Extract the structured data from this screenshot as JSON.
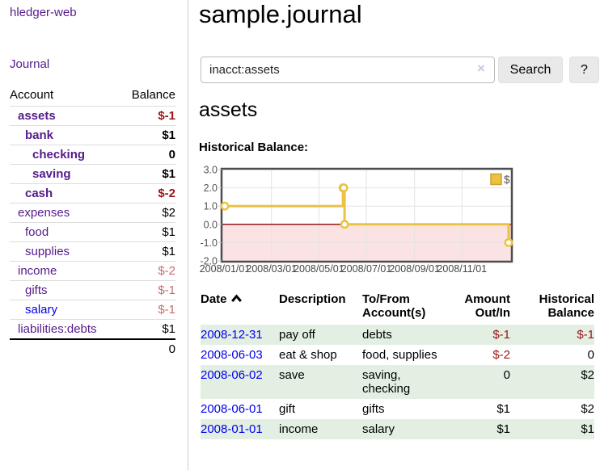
{
  "app": {
    "brand": "hledger-web",
    "nav_journal": "Journal"
  },
  "sidebar": {
    "headers": {
      "account": "Account",
      "balance": "Balance"
    },
    "accounts": [
      {
        "name": "assets",
        "balance": "$-1"
      },
      {
        "name": "bank",
        "balance": "$1"
      },
      {
        "name": "checking",
        "balance": "0"
      },
      {
        "name": "saving",
        "balance": "$1"
      },
      {
        "name": "cash",
        "balance": "$-2"
      },
      {
        "name": "expenses",
        "balance": "$2"
      },
      {
        "name": "food",
        "balance": "$1"
      },
      {
        "name": "supplies",
        "balance": "$1"
      },
      {
        "name": "income",
        "balance": "$-2"
      },
      {
        "name": "gifts",
        "balance": "$-1"
      },
      {
        "name": "salary",
        "balance": "$-1"
      },
      {
        "name": "liabilities:debts",
        "balance": "$1"
      }
    ],
    "total": "0"
  },
  "main": {
    "title": "sample.journal",
    "search": {
      "value": "inacct:assets",
      "clear_icon": "×",
      "button": "Search",
      "help_button": "?"
    },
    "account_heading": "assets",
    "chart_title": "Historical Balance:"
  },
  "chart_data": {
    "type": "line",
    "title": "Historical Balance",
    "step": true,
    "series": [
      {
        "name": "$",
        "color": "#EDC240",
        "points": [
          [
            "2008-01-01",
            1
          ],
          [
            "2008-06-01",
            2
          ],
          [
            "2008-06-02",
            2
          ],
          [
            "2008-06-03",
            0
          ],
          [
            "2008-12-31",
            -1
          ]
        ]
      }
    ],
    "xlim": [
      "2008-01-01",
      "2008-12-31"
    ],
    "ylim": [
      -2,
      3
    ],
    "y_ticks": [
      3.0,
      2.0,
      1.0,
      0.0,
      -1.0,
      -2.0
    ],
    "x_ticks": [
      {
        "date": "2008-01-01",
        "label": "2008/01/01"
      },
      {
        "date": "2008-03-01",
        "label": "2008/03/01"
      },
      {
        "date": "2008-05-01",
        "label": "2008/05/01"
      },
      {
        "date": "2008-07-01",
        "label": "2008/07/01"
      },
      {
        "date": "2008-09-01",
        "label": "2008/09/01"
      },
      {
        "date": "2008-11-01",
        "label": "2008/11/01"
      }
    ],
    "legend_position": "top-right",
    "legend_label": "$",
    "grid": true,
    "negative_region_color": "#fbe3e3",
    "zero_line_color": "#8b0000",
    "border_color": "#4d4d4d",
    "gridline_color": "#e3e3e3",
    "tick_label_color": "#545454"
  },
  "register": {
    "headers": {
      "date": "Date",
      "description": "Description",
      "accounts": "To/From Account(s)",
      "amount": "Amount Out/In",
      "balance": "Historical Balance"
    },
    "rows": [
      {
        "date": "2008-12-31",
        "description": "pay off",
        "accounts": "debts",
        "amount": "$-1",
        "balance": "$-1"
      },
      {
        "date": "2008-06-03",
        "description": "eat & shop",
        "accounts": "food, supplies",
        "amount": "$-2",
        "balance": "0"
      },
      {
        "date": "2008-06-02",
        "description": "save",
        "accounts": "saving, checking",
        "amount": "0",
        "balance": "$2"
      },
      {
        "date": "2008-06-01",
        "description": "gift",
        "accounts": "gifts",
        "amount": "$1",
        "balance": "$2"
      },
      {
        "date": "2008-01-01",
        "description": "income",
        "accounts": "salary",
        "amount": "$1",
        "balance": "$1"
      }
    ]
  }
}
